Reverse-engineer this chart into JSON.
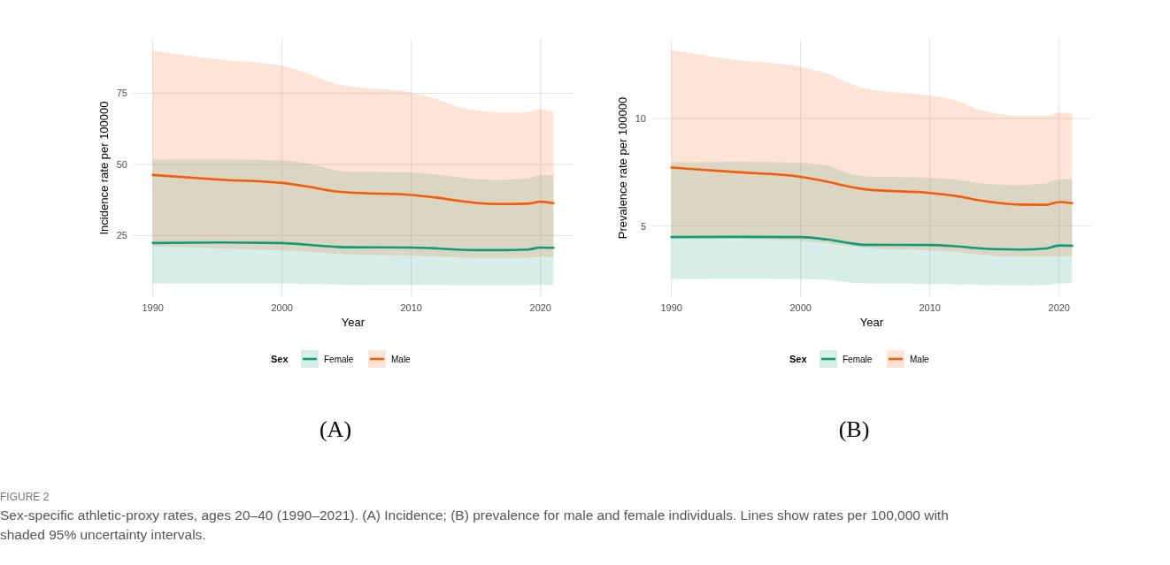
{
  "chart_data": [
    {
      "type": "line",
      "title": "(A)",
      "xlabel": "Year",
      "ylabel": "Incidence rate per 100000",
      "legend_title": "Sex",
      "legend": "bottom",
      "grid": true,
      "x": [
        1990,
        1995,
        2000,
        2002,
        2004,
        2005,
        2010,
        2012,
        2014,
        2015,
        2017,
        2019,
        2020,
        2021
      ],
      "xlim": [
        1988.45,
        2022.55
      ],
      "xticks": [
        1990,
        2000,
        2010,
        2020
      ],
      "ylim": [
        3.4,
        94.1
      ],
      "yticks": [
        25,
        50,
        75
      ],
      "series": [
        {
          "name": "Female",
          "color": "#0f9b74",
          "values": [
            22.4,
            22.6,
            22.4,
            21.8,
            21.1,
            20.9,
            20.8,
            20.5,
            20.0,
            19.9,
            19.9,
            20.1,
            20.8,
            20.7
          ],
          "lower": [
            8.1,
            8.1,
            8.1,
            8.0,
            7.8,
            7.7,
            7.6,
            7.6,
            7.5,
            7.5,
            7.5,
            7.5,
            7.7,
            7.7
          ],
          "upper": [
            51.7,
            51.8,
            51.4,
            50.3,
            48.1,
            47.5,
            47.2,
            46.4,
            45.3,
            44.8,
            44.6,
            45.1,
            46.3,
            46.3
          ]
        },
        {
          "name": "Male",
          "color": "#f25c0c",
          "values": [
            46.3,
            44.7,
            43.5,
            42.2,
            40.6,
            40.2,
            39.3,
            38.3,
            37.0,
            36.5,
            36.1,
            36.2,
            36.9,
            36.4
          ],
          "lower": [
            21.2,
            20.6,
            19.8,
            19.3,
            18.7,
            18.5,
            18.0,
            17.7,
            17.3,
            17.2,
            17.1,
            17.2,
            17.5,
            17.4
          ],
          "upper": [
            90.0,
            86.9,
            84.6,
            82.0,
            78.5,
            77.6,
            75.2,
            72.8,
            69.8,
            69.0,
            68.3,
            68.3,
            69.3,
            68.5
          ]
        }
      ],
      "annotations": [
        "FIGURE 2",
        "Sex-specific athletic-proxy rates, ages 20–40 (1990–2021). (A) Incidence; (B) prevalence for male and female individuals. Lines show rates per 100,000 with shaded 95% uncertainty intervals."
      ]
    },
    {
      "type": "line",
      "title": "(B)",
      "xlabel": "Year",
      "ylabel": "Prevalence rate per 100000",
      "legend_title": "Sex",
      "legend": "bottom",
      "grid": true,
      "x": [
        1990,
        1995,
        2000,
        2002,
        2004,
        2005,
        2010,
        2012,
        2014,
        2015,
        2017,
        2019,
        2020,
        2021
      ],
      "xlim": [
        1988.45,
        2022.55
      ],
      "xticks": [
        1990,
        2000,
        2010,
        2020
      ],
      "ylim": [
        1.7,
        13.7
      ],
      "yticks": [
        5,
        10
      ],
      "series": [
        {
          "name": "Female",
          "color": "#0f9b74",
          "values": [
            4.49,
            4.5,
            4.49,
            4.38,
            4.19,
            4.13,
            4.12,
            4.06,
            3.96,
            3.93,
            3.91,
            3.96,
            4.1,
            4.09
          ],
          "lower": [
            2.54,
            2.55,
            2.54,
            2.5,
            2.37,
            2.34,
            2.32,
            2.3,
            2.27,
            2.25,
            2.24,
            2.26,
            2.34,
            2.34
          ],
          "upper": [
            7.96,
            7.99,
            7.94,
            7.81,
            7.4,
            7.31,
            7.25,
            7.16,
            6.99,
            6.93,
            6.91,
            6.99,
            7.18,
            7.16
          ]
        },
        {
          "name": "Male",
          "color": "#f25c0c",
          "values": [
            7.72,
            7.51,
            7.29,
            7.07,
            6.81,
            6.71,
            6.54,
            6.4,
            6.18,
            6.1,
            6.0,
            5.99,
            6.12,
            6.06
          ],
          "lower": [
            4.46,
            4.42,
            4.31,
            4.22,
            4.05,
            3.99,
            3.87,
            3.8,
            3.67,
            3.62,
            3.57,
            3.58,
            3.62,
            3.6
          ],
          "upper": [
            13.18,
            12.72,
            12.4,
            12.1,
            11.59,
            11.4,
            11.07,
            10.85,
            10.37,
            10.25,
            10.12,
            10.12,
            10.29,
            10.22
          ]
        }
      ]
    }
  ]
}
